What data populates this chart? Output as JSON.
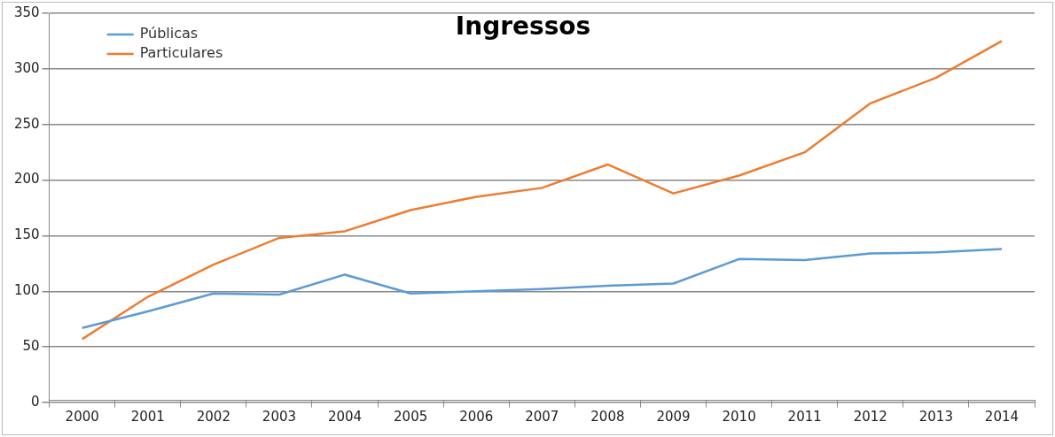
{
  "chart_data": {
    "type": "line",
    "title": "Ingressos",
    "categories": [
      "2000",
      "2001",
      "2002",
      "2003",
      "2004",
      "2005",
      "2006",
      "2007",
      "2008",
      "2009",
      "2010",
      "2011",
      "2012",
      "2013",
      "2014"
    ],
    "series": [
      {
        "name": "Públicas",
        "color": "#5b9bd5",
        "values": [
          67,
          82,
          98,
          97,
          115,
          98,
          100,
          102,
          105,
          107,
          129,
          128,
          134,
          135,
          138
        ]
      },
      {
        "name": "Particulares",
        "color": "#ed7d31",
        "values": [
          57,
          95,
          124,
          148,
          154,
          173,
          185,
          193,
          214,
          188,
          204,
          225,
          269,
          292,
          325
        ]
      }
    ],
    "ylim": [
      0,
      350
    ],
    "yticks": [
      0,
      50,
      100,
      150,
      200,
      250,
      300,
      350
    ],
    "grid": "y",
    "legend": "top left",
    "marker": "none",
    "line_style": "solid"
  }
}
